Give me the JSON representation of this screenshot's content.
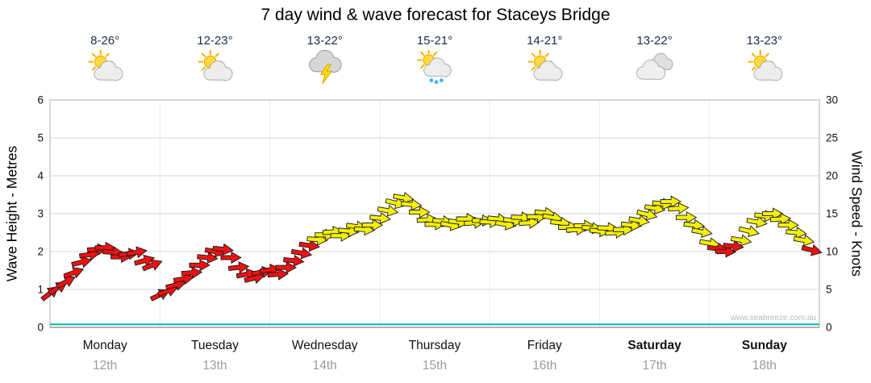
{
  "title": "7 day wind & wave forecast for Staceys Bridge",
  "watermark": "www.seabreeze.com.au",
  "days": [
    {
      "name": "Monday",
      "date": "12th",
      "temp": "8-26°",
      "icon": "partly-cloudy",
      "bold": false
    },
    {
      "name": "Tuesday",
      "date": "13th",
      "temp": "12-23°",
      "icon": "partly-cloudy",
      "bold": false
    },
    {
      "name": "Wednesday",
      "date": "14th",
      "temp": "13-22°",
      "icon": "thunderstorm",
      "bold": false
    },
    {
      "name": "Thursday",
      "date": "15th",
      "temp": "15-21°",
      "icon": "sun-showers",
      "bold": false
    },
    {
      "name": "Friday",
      "date": "16th",
      "temp": "14-21°",
      "icon": "partly-cloudy",
      "bold": false
    },
    {
      "name": "Saturday",
      "date": "17th",
      "temp": "13-22°",
      "icon": "cloudy",
      "bold": true
    },
    {
      "name": "Sunday",
      "date": "18th",
      "temp": "13-23°",
      "icon": "partly-cloudy",
      "bold": true
    }
  ],
  "axes": {
    "left_label": "Wave Height - Metres",
    "left_ticks": [
      0,
      1,
      2,
      3,
      4,
      5,
      6
    ],
    "left_range": [
      0,
      6
    ],
    "right_label": "Wind Speed - Knots",
    "right_ticks": [
      0,
      5,
      10,
      15,
      20,
      25,
      30
    ],
    "right_range": [
      0,
      30
    ]
  },
  "colors": {
    "wind_low": "#ee1111",
    "wind_high": "#f5f000",
    "arrow_outline": "#1a1a1a",
    "wave": "#00b7b7",
    "grid": "#d4d4d4",
    "day_grid": "#ececec",
    "plot_border": "#b0b0b0",
    "axis_line": "#666666",
    "temp_text": "#1c2c45"
  },
  "chart_data": {
    "type": "line",
    "title": "7 day wind & wave forecast for Staceys Bridge",
    "x_unit": "days (Mon 12th - Sun 18th)",
    "y_left": {
      "label": "Wave Height - Metres",
      "range": [
        0,
        6
      ]
    },
    "y_right": {
      "label": "Wind Speed - Knots",
      "range": [
        0,
        30
      ]
    },
    "wind_color_rule": {
      "red_below_knots": 11,
      "yellow_at_or_above_knots": 11
    },
    "series": [
      {
        "name": "Wind Speed (knots)",
        "style": "wind-arrows",
        "points_format": [
          "day_fraction",
          "knots",
          "direction_deg"
        ],
        "points": [
          [
            0.0,
            4.5,
            -38
          ],
          [
            0.071,
            5.2,
            -32
          ],
          [
            0.143,
            6.0,
            -28
          ],
          [
            0.214,
            7.2,
            -20
          ],
          [
            0.286,
            8.6,
            -14
          ],
          [
            0.357,
            9.6,
            -8
          ],
          [
            0.429,
            10.3,
            -4
          ],
          [
            0.5,
            10.5,
            0
          ],
          [
            0.571,
            9.9,
            4
          ],
          [
            0.643,
            9.3,
            0
          ],
          [
            0.714,
            9.7,
            -6
          ],
          [
            0.786,
            9.9,
            -10
          ],
          [
            0.857,
            8.8,
            -16
          ],
          [
            0.929,
            8.2,
            -22
          ],
          [
            1.0,
            4.3,
            -26
          ],
          [
            1.071,
            4.8,
            -20
          ],
          [
            1.143,
            5.6,
            -14
          ],
          [
            1.214,
            6.4,
            -10
          ],
          [
            1.286,
            7.2,
            -4
          ],
          [
            1.357,
            8.2,
            0
          ],
          [
            1.429,
            9.2,
            6
          ],
          [
            1.5,
            10.0,
            10
          ],
          [
            1.571,
            10.3,
            6
          ],
          [
            1.643,
            9.2,
            0
          ],
          [
            1.714,
            7.9,
            -6
          ],
          [
            1.786,
            7.0,
            -10
          ],
          [
            1.857,
            6.5,
            -14
          ],
          [
            1.929,
            7.3,
            -10
          ],
          [
            2.0,
            7.6,
            -8
          ],
          [
            2.071,
            7.0,
            -4
          ],
          [
            2.143,
            7.9,
            0
          ],
          [
            2.214,
            8.8,
            6
          ],
          [
            2.286,
            9.8,
            10
          ],
          [
            2.357,
            10.8,
            8
          ],
          [
            2.429,
            11.6,
            4
          ],
          [
            2.5,
            12.2,
            0
          ],
          [
            2.571,
            12.6,
            -4
          ],
          [
            2.643,
            12.1,
            0
          ],
          [
            2.714,
            12.7,
            6
          ],
          [
            2.786,
            13.3,
            8
          ],
          [
            2.857,
            12.9,
            4
          ],
          [
            2.929,
            13.5,
            0
          ],
          [
            3.0,
            14.4,
            6
          ],
          [
            3.071,
            15.4,
            10
          ],
          [
            3.143,
            16.4,
            14
          ],
          [
            3.214,
            17.1,
            10
          ],
          [
            3.286,
            16.2,
            6
          ],
          [
            3.357,
            15.2,
            0
          ],
          [
            3.429,
            14.2,
            -4
          ],
          [
            3.5,
            13.6,
            0
          ],
          [
            3.571,
            14.0,
            6
          ],
          [
            3.643,
            13.5,
            10
          ],
          [
            3.714,
            13.9,
            6
          ],
          [
            3.786,
            14.3,
            0
          ],
          [
            3.857,
            13.8,
            -4
          ],
          [
            3.929,
            14.1,
            0
          ],
          [
            4.0,
            13.9,
            2
          ],
          [
            4.071,
            14.3,
            6
          ],
          [
            4.143,
            13.6,
            10
          ],
          [
            4.214,
            14.1,
            6
          ],
          [
            4.286,
            14.5,
            2
          ],
          [
            4.357,
            13.8,
            -4
          ],
          [
            4.429,
            14.6,
            0
          ],
          [
            4.5,
            15.1,
            6
          ],
          [
            4.571,
            14.5,
            10
          ],
          [
            4.643,
            13.8,
            6
          ],
          [
            4.714,
            13.2,
            0
          ],
          [
            4.786,
            12.9,
            -4
          ],
          [
            4.857,
            13.4,
            0
          ],
          [
            4.929,
            13.1,
            4
          ],
          [
            5.0,
            12.7,
            6
          ],
          [
            5.071,
            13.1,
            2
          ],
          [
            5.143,
            12.5,
            -4
          ],
          [
            5.214,
            12.9,
            0
          ],
          [
            5.286,
            13.5,
            6
          ],
          [
            5.357,
            14.1,
            10
          ],
          [
            5.429,
            14.9,
            14
          ],
          [
            5.5,
            15.7,
            10
          ],
          [
            5.571,
            16.3,
            6
          ],
          [
            5.643,
            16.6,
            0
          ],
          [
            5.714,
            15.7,
            -4
          ],
          [
            5.786,
            14.5,
            0
          ],
          [
            5.857,
            13.5,
            6
          ],
          [
            5.929,
            12.6,
            10
          ],
          [
            6.0,
            11.1,
            10
          ],
          [
            6.071,
            10.4,
            6
          ],
          [
            6.143,
            10.0,
            2
          ],
          [
            6.214,
            10.7,
            6
          ],
          [
            6.286,
            11.5,
            10
          ],
          [
            6.357,
            12.7,
            14
          ],
          [
            6.429,
            13.9,
            10
          ],
          [
            6.5,
            14.7,
            6
          ],
          [
            6.571,
            15.0,
            0
          ],
          [
            6.643,
            14.3,
            -4
          ],
          [
            6.714,
            13.5,
            0
          ],
          [
            6.786,
            12.5,
            6
          ],
          [
            6.857,
            11.5,
            10
          ],
          [
            6.929,
            10.2,
            14
          ]
        ]
      },
      {
        "name": "Wave Height (metres)",
        "style": "line",
        "points_format": [
          "day_fraction",
          "metres"
        ],
        "points": [
          [
            0,
            0.08
          ],
          [
            7,
            0.08
          ]
        ]
      }
    ]
  }
}
